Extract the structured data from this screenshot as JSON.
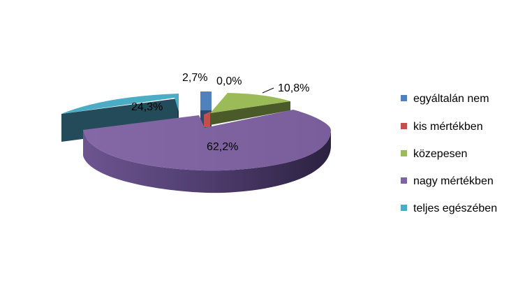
{
  "chart_data": {
    "type": "pie",
    "style": "3d-exploded",
    "title": "",
    "categories": [
      "egyáltalán nem",
      "kis mértékben",
      "közepesen",
      "nagy mértékben",
      "teljes egészében"
    ],
    "values": [
      2.7,
      0.0,
      10.8,
      62.2,
      24.3
    ],
    "labels": [
      "2,7%",
      "0,0%",
      "10,8%",
      "62,2%",
      "24,3%"
    ],
    "colors": [
      "#4F81BD",
      "#C0504D",
      "#9BBB59",
      "#8064A2",
      "#4BACC6"
    ],
    "legend_position": "right"
  }
}
